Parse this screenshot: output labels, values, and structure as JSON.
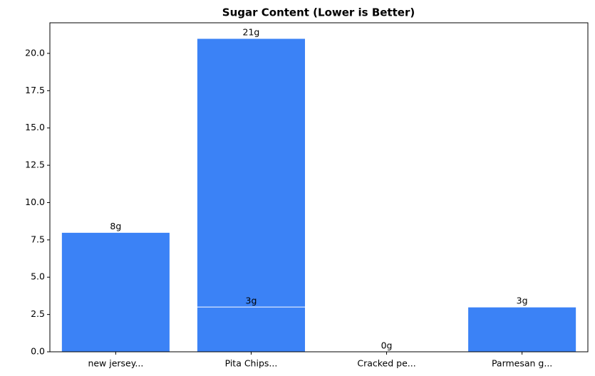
{
  "chart_data": {
    "type": "bar",
    "title": "Sugar Content (Lower is Better)",
    "categories": [
      "new jersey...",
      "Pita Chips...",
      "Pita Chips...",
      "Cracked pe...",
      "Parmesan g..."
    ],
    "values": [
      8,
      21,
      3,
      0,
      3
    ],
    "value_labels": [
      "8g",
      "21g",
      "3g",
      "0g",
      "3g"
    ],
    "color": "#3b82f6",
    "ylim": [
      0,
      22.05
    ],
    "yticks": [
      {
        "value": 0,
        "label": "0.0"
      },
      {
        "value": 2.5,
        "label": "2.5"
      },
      {
        "value": 5,
        "label": "5.0"
      },
      {
        "value": 7.5,
        "label": "7.5"
      },
      {
        "value": 10,
        "label": "10.0"
      },
      {
        "value": 12.5,
        "label": "12.5"
      },
      {
        "value": 15,
        "label": "15.0"
      },
      {
        "value": 17.5,
        "label": "17.5"
      },
      {
        "value": 20,
        "label": "20.0"
      }
    ]
  }
}
